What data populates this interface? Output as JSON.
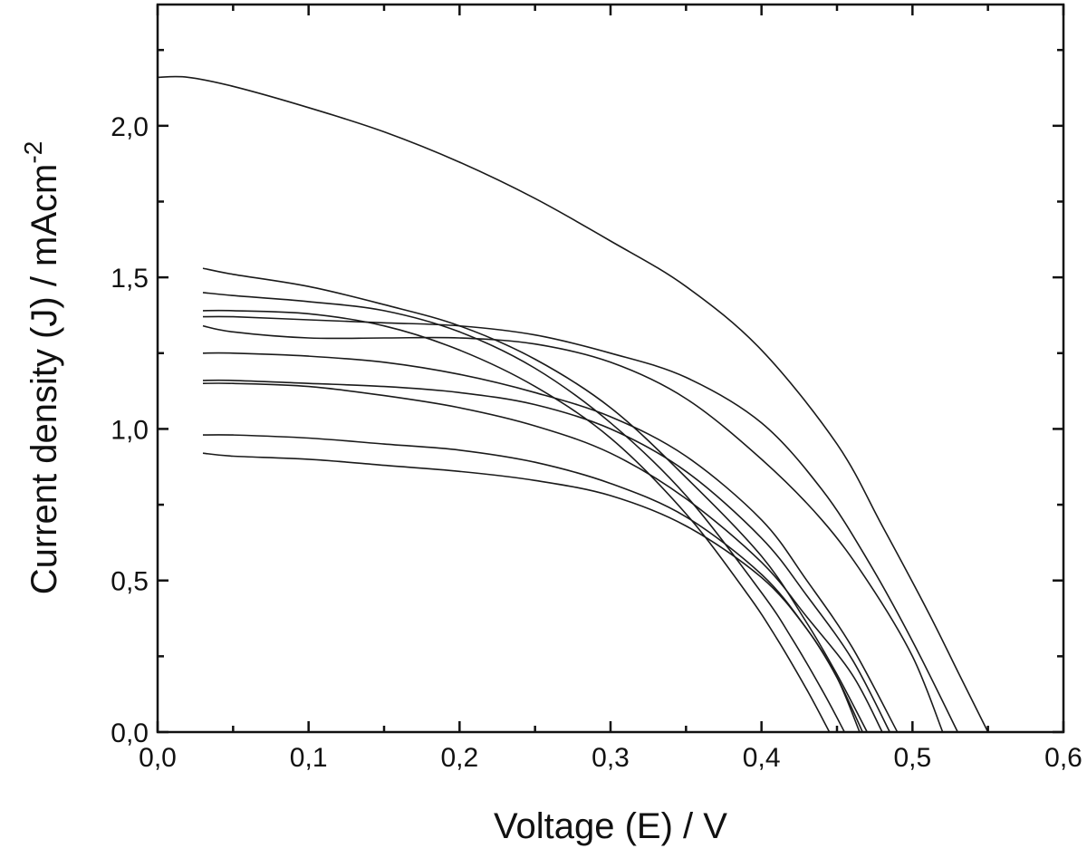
{
  "chart_data": {
    "type": "line",
    "title": "",
    "xlabel": "Voltage (E) / V",
    "ylabel": "Current density (J) / mAcm",
    "ylabel_superscript": "-2",
    "xlim": [
      0.0,
      0.6
    ],
    "ylim": [
      0.0,
      2.4
    ],
    "x_ticks": [
      "0,0",
      "0,1",
      "0,2",
      "0,3",
      "0,4",
      "0,5",
      "0,6"
    ],
    "y_ticks": [
      "0,0",
      "0,5",
      "1,0",
      "1,5",
      "2,0"
    ],
    "x_tick_values": [
      0.0,
      0.1,
      0.2,
      0.3,
      0.4,
      0.5,
      0.6
    ],
    "y_tick_values": [
      0.0,
      0.5,
      1.0,
      1.5,
      2.0
    ],
    "grid": false,
    "legend": "none",
    "line_color": "#1a1a1a",
    "series": [
      {
        "x": [
          0.0,
          0.02,
          0.05,
          0.1,
          0.15,
          0.2,
          0.25,
          0.3,
          0.35,
          0.4,
          0.45,
          0.48,
          0.51,
          0.53,
          0.55
        ],
        "y": [
          2.16,
          2.16,
          2.13,
          2.06,
          1.98,
          1.88,
          1.76,
          1.62,
          1.47,
          1.26,
          0.95,
          0.68,
          0.4,
          0.2,
          0.0
        ]
      },
      {
        "x": [
          0.03,
          0.05,
          0.1,
          0.15,
          0.2,
          0.25,
          0.3,
          0.35,
          0.4,
          0.44,
          0.47,
          0.5,
          0.53
        ],
        "y": [
          1.37,
          1.37,
          1.36,
          1.35,
          1.34,
          1.31,
          1.25,
          1.17,
          1.02,
          0.8,
          0.57,
          0.3,
          0.0
        ]
      },
      {
        "x": [
          0.03,
          0.05,
          0.1,
          0.15,
          0.2,
          0.25,
          0.3,
          0.35,
          0.4,
          0.44,
          0.47,
          0.5,
          0.52
        ],
        "y": [
          1.34,
          1.32,
          1.3,
          1.3,
          1.3,
          1.28,
          1.22,
          1.1,
          0.9,
          0.7,
          0.5,
          0.25,
          0.0
        ]
      },
      {
        "x": [
          0.03,
          0.05,
          0.1,
          0.15,
          0.2,
          0.25,
          0.3,
          0.35,
          0.4,
          0.43,
          0.46,
          0.49
        ],
        "y": [
          1.25,
          1.25,
          1.24,
          1.22,
          1.18,
          1.12,
          1.04,
          0.91,
          0.7,
          0.5,
          0.28,
          0.0
        ]
      },
      {
        "x": [
          0.03,
          0.05,
          0.1,
          0.15,
          0.2,
          0.25,
          0.3,
          0.35,
          0.4,
          0.43,
          0.46,
          0.485
        ],
        "y": [
          1.16,
          1.16,
          1.15,
          1.14,
          1.12,
          1.08,
          1.0,
          0.86,
          0.64,
          0.45,
          0.24,
          0.0
        ]
      },
      {
        "x": [
          0.03,
          0.05,
          0.1,
          0.15,
          0.2,
          0.25,
          0.3,
          0.35,
          0.4,
          0.43,
          0.46,
          0.48
        ],
        "y": [
          1.15,
          1.15,
          1.14,
          1.11,
          1.07,
          1.01,
          0.92,
          0.77,
          0.56,
          0.38,
          0.19,
          0.0
        ]
      },
      {
        "x": [
          0.03,
          0.05,
          0.1,
          0.15,
          0.2,
          0.25,
          0.3,
          0.35,
          0.4,
          0.43,
          0.45,
          0.47
        ],
        "y": [
          1.53,
          1.51,
          1.47,
          1.41,
          1.34,
          1.23,
          1.07,
          0.84,
          0.58,
          0.36,
          0.19,
          0.0
        ]
      },
      {
        "x": [
          0.03,
          0.05,
          0.1,
          0.15,
          0.2,
          0.25,
          0.3,
          0.35,
          0.4,
          0.42,
          0.44,
          0.455
        ],
        "y": [
          1.45,
          1.44,
          1.42,
          1.39,
          1.32,
          1.2,
          1.02,
          0.78,
          0.46,
          0.31,
          0.14,
          0.0
        ]
      },
      {
        "x": [
          0.03,
          0.05,
          0.1,
          0.15,
          0.2,
          0.25,
          0.3,
          0.35,
          0.39,
          0.41,
          0.43,
          0.445
        ],
        "y": [
          1.39,
          1.39,
          1.38,
          1.34,
          1.26,
          1.14,
          0.97,
          0.72,
          0.46,
          0.31,
          0.14,
          0.0
        ]
      },
      {
        "x": [
          0.03,
          0.05,
          0.1,
          0.15,
          0.2,
          0.25,
          0.3,
          0.35,
          0.4,
          0.43,
          0.45,
          0.467
        ],
        "y": [
          0.98,
          0.98,
          0.97,
          0.95,
          0.93,
          0.89,
          0.82,
          0.71,
          0.52,
          0.34,
          0.18,
          0.0
        ]
      },
      {
        "x": [
          0.03,
          0.05,
          0.1,
          0.15,
          0.2,
          0.25,
          0.3,
          0.35,
          0.4,
          0.43,
          0.45,
          0.465
        ],
        "y": [
          0.92,
          0.91,
          0.9,
          0.88,
          0.86,
          0.83,
          0.78,
          0.68,
          0.51,
          0.34,
          0.18,
          0.0
        ]
      }
    ]
  }
}
